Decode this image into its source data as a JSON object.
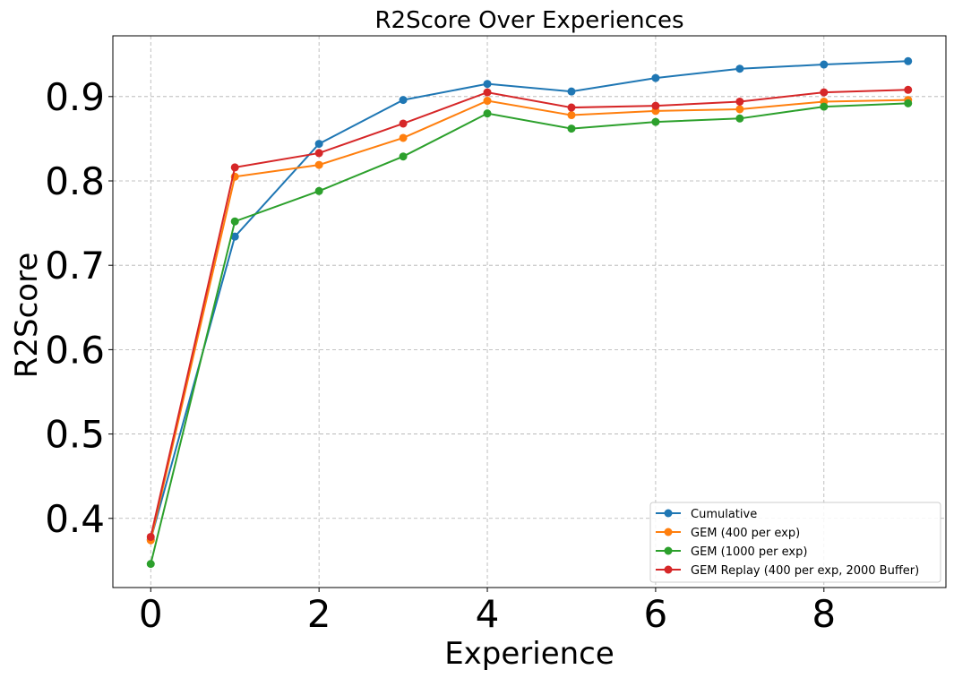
{
  "chart_data": {
    "type": "line",
    "title": "R2Score Over Experiences",
    "xlabel": "Experience",
    "ylabel": "R2Score",
    "x": [
      0,
      1,
      2,
      3,
      4,
      5,
      6,
      7,
      8,
      9
    ],
    "xlim": [
      -0.45,
      9.45
    ],
    "ylim": [
      0.318,
      0.972
    ],
    "xticks": [
      0,
      2,
      4,
      6,
      8
    ],
    "yticks": [
      0.4,
      0.5,
      0.6,
      0.7,
      0.8,
      0.9
    ],
    "xtick_labels": [
      "0",
      "2",
      "4",
      "6",
      "8"
    ],
    "ytick_labels": [
      "0.4",
      "0.5",
      "0.6",
      "0.7",
      "0.8",
      "0.9"
    ],
    "grid": true,
    "legend_position": "lower-right",
    "series": [
      {
        "name": "Cumulative",
        "color": "#1f77b4",
        "values": [
          0.375,
          0.734,
          0.844,
          0.896,
          0.915,
          0.906,
          0.922,
          0.933,
          0.938,
          0.942
        ]
      },
      {
        "name": "GEM (400 per exp)",
        "color": "#ff7f0e",
        "values": [
          0.374,
          0.805,
          0.819,
          0.851,
          0.895,
          0.878,
          0.883,
          0.885,
          0.894,
          0.896
        ]
      },
      {
        "name": "GEM (1000 per exp)",
        "color": "#2ca02c",
        "values": [
          0.346,
          0.752,
          0.788,
          0.829,
          0.88,
          0.862,
          0.87,
          0.874,
          0.888,
          0.892
        ]
      },
      {
        "name": "GEM Replay (400 per exp, 2000 Buffer)",
        "color": "#d62728",
        "values": [
          0.378,
          0.816,
          0.833,
          0.868,
          0.905,
          0.887,
          0.889,
          0.894,
          0.905,
          0.908
        ]
      }
    ]
  }
}
